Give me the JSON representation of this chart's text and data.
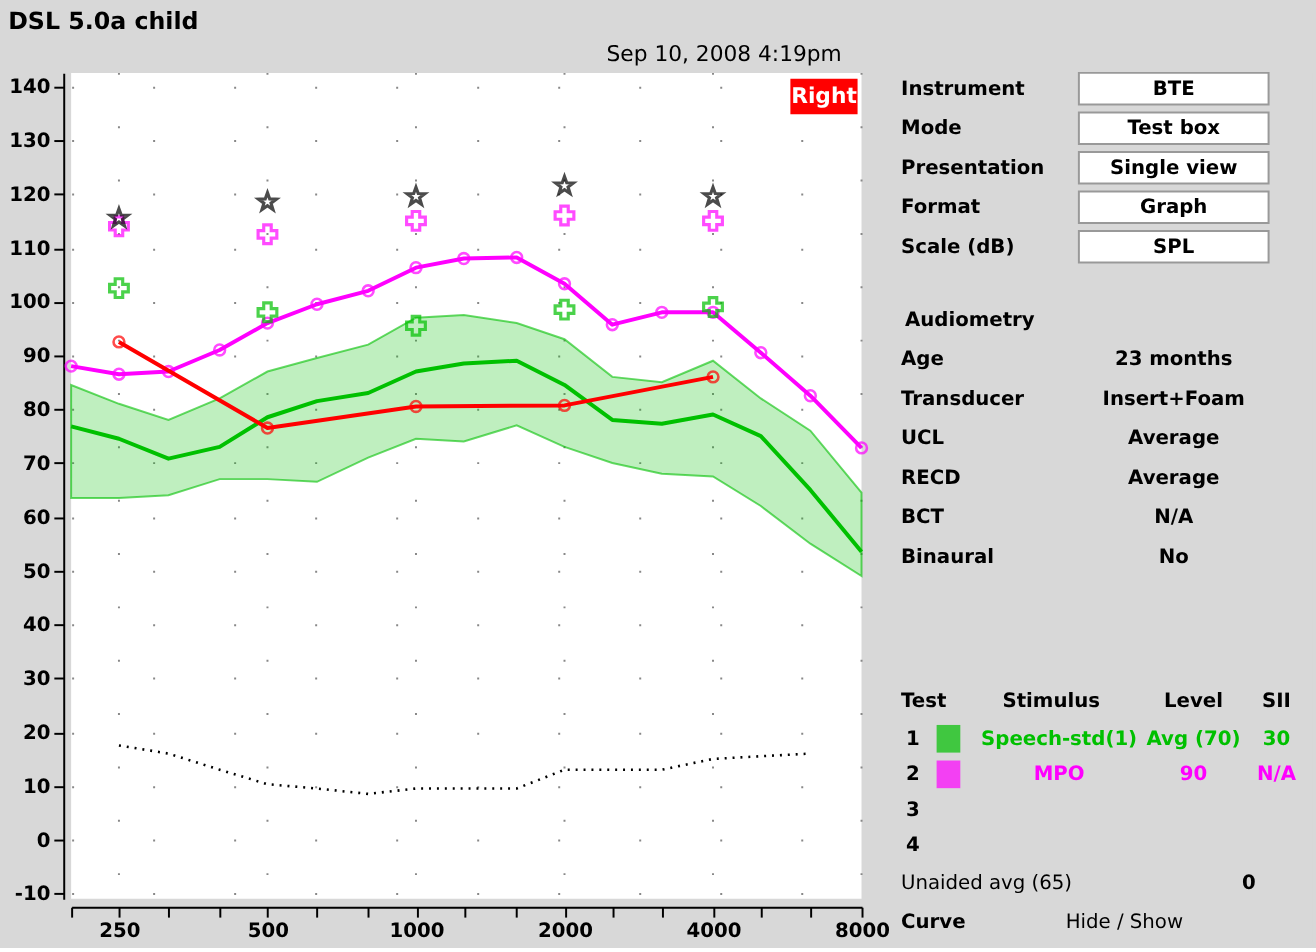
{
  "chart_data": {
    "type": "line",
    "title": "DSL 5.0a child",
    "xlim": [
      200,
      8000
    ],
    "ylim": [
      -11,
      142.5
    ],
    "log": "x",
    "grid": true,
    "xticks": [
      {
        "value": 200,
        "label": null
      },
      250,
      {
        "value": 315,
        "label": null
      },
      {
        "value": 400,
        "label": null
      },
      500,
      {
        "value": 630,
        "label": null
      },
      {
        "value": 800,
        "label": null
      },
      1000,
      {
        "value": 1250,
        "label": null
      },
      {
        "value": 1600,
        "label": null
      },
      2000,
      {
        "value": 2500,
        "label": null
      },
      {
        "value": 3150,
        "label": null
      },
      4000,
      {
        "value": 5000,
        "label": null
      },
      {
        "value": 6300,
        "label": null
      },
      8000
    ],
    "yticks": [
      -10,
      0,
      10,
      20,
      30,
      40,
      50,
      60,
      70,
      80,
      90,
      100,
      110,
      120,
      130,
      140
    ],
    "series": [
      {
        "name": "Speech-std(1)",
        "color": "#00c000",
        "type": "line",
        "marker": "none",
        "x": [
          200,
          250,
          315,
          400,
          500,
          630,
          800,
          1000,
          1250,
          1600,
          2000,
          2500,
          3150,
          4000,
          5000,
          6300,
          8000
        ],
        "values": [
          76.8,
          74.5,
          70.8,
          73,
          78.5,
          81.5,
          83,
          87,
          88.5,
          89,
          84.5,
          78,
          77.3,
          79,
          75,
          65,
          53.5
        ],
        "lower": [
          63.5,
          63.5,
          64,
          67,
          67,
          66.5,
          71,
          74.5,
          74,
          77,
          73,
          70,
          68,
          67.5,
          62,
          55,
          49
        ],
        "upper": [
          84.5,
          81,
          78,
          82,
          87,
          89.5,
          92,
          97,
          97.5,
          96,
          93,
          86,
          85,
          89,
          82,
          76,
          64.5
        ]
      },
      {
        "name": "MPO",
        "color": "#ff00ff",
        "type": "line",
        "marker": "circle",
        "x": [
          200,
          250,
          315,
          400,
          500,
          630,
          800,
          1000,
          1250,
          1600,
          2000,
          2500,
          3150,
          4000,
          5000,
          6300,
          8000
        ],
        "values": [
          88,
          86.5,
          87,
          91,
          96,
          99.5,
          102,
          106.3,
          108,
          108.2,
          103.3,
          95.7,
          98,
          98,
          90.5,
          82.5,
          72.8
        ]
      },
      {
        "color": "#ff0000",
        "type": "line",
        "marker": "circle",
        "x": [
          250,
          500,
          1000,
          2000,
          4000
        ],
        "values": [
          92.5,
          76.5,
          80.5,
          80.7,
          86
        ]
      },
      {
        "color": "#000000",
        "type": "line",
        "marker": "none",
        "line_style": "dotted",
        "x": [
          250,
          315,
          400,
          500,
          630,
          800,
          1000,
          1250,
          1600,
          2000,
          2500,
          3150,
          4000,
          5000,
          6300
        ],
        "values": [
          17.5,
          16,
          13,
          10.3,
          9.5,
          8.5,
          9.5,
          9.5,
          9.5,
          13,
          13,
          13,
          15,
          15.5,
          16
        ]
      },
      {
        "color": "#00c000",
        "type": "scatter",
        "marker": "cross",
        "x": [
          250,
          500,
          1000,
          2000,
          4000
        ],
        "values": [
          102.5,
          98,
          95.5,
          98.5,
          99
        ]
      },
      {
        "color": "#ff00ff",
        "type": "scatter",
        "marker": "cross",
        "x": [
          250,
          500,
          1000,
          2000,
          4000
        ],
        "values": [
          114,
          112.5,
          115,
          116,
          115
        ]
      },
      {
        "color": "#000000",
        "type": "scatter",
        "marker": "star",
        "x": [
          250,
          500,
          1000,
          2000,
          4000
        ],
        "values": [
          115.5,
          118.5,
          119.5,
          121.5,
          119.5
        ]
      }
    ],
    "annotations": [
      "Sep 10, 2008 4:19pm",
      "Right",
      "Instrument",
      "BTE",
      "Mode",
      "Test box",
      "Presentation",
      "Single view",
      "Format",
      "Graph",
      "Scale (dB)",
      "SPL",
      "Audiometry",
      "Age",
      "23 months",
      "Transducer",
      "Insert+Foam",
      "UCL",
      "Average",
      "RECD",
      "Average",
      "BCT",
      "N/A",
      "Binaural",
      "No",
      "Test",
      "Stimulus",
      "Level",
      "SII",
      "1",
      "Avg (70)",
      "30",
      "2",
      "90",
      "N/A",
      "3",
      "4",
      "Unaided avg (65)",
      "0",
      "Curve",
      "Hide / Show"
    ]
  }
}
